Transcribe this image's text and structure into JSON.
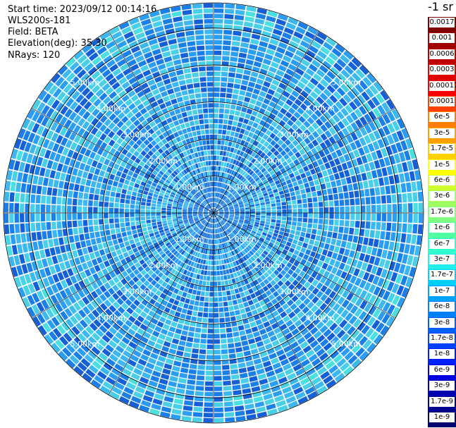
{
  "header": {
    "start_time": "Start time: 2023/09/12 00:14:16",
    "instrument": "WLS200s-181",
    "field": "Field: BETA",
    "elevation": "Elevation(deg): 35.30",
    "nrays": "NRays: 120"
  },
  "colorbar": {
    "unit": "-1 sr",
    "levels": [
      {
        "label": "0.0017",
        "color": "#800000"
      },
      {
        "label": "0.001",
        "color": "#a00000"
      },
      {
        "label": "0.0006",
        "color": "#c00000"
      },
      {
        "label": "0.0003",
        "color": "#e00000"
      },
      {
        "label": "0.00017",
        "color": "#ff0000"
      },
      {
        "label": "0.0001",
        "color": "#ff4000"
      },
      {
        "label": "6e-5",
        "color": "#ff8000"
      },
      {
        "label": "3e-5",
        "color": "#ffa000"
      },
      {
        "label": "1.7e-5",
        "color": "#ffd000"
      },
      {
        "label": "1e-5",
        "color": "#ffff00"
      },
      {
        "label": "6e-6",
        "color": "#d0ff30"
      },
      {
        "label": "3e-6",
        "color": "#a0ff60"
      },
      {
        "label": "1.7e-6",
        "color": "#80ff80"
      },
      {
        "label": "1e-6",
        "color": "#50ffa0"
      },
      {
        "label": "6e-7",
        "color": "#30ffd0"
      },
      {
        "label": "3e-7",
        "color": "#20f0f0"
      },
      {
        "label": "1.7e-7",
        "color": "#00d0ff"
      },
      {
        "label": "1e-7",
        "color": "#00a0ff"
      },
      {
        "label": "6e-8",
        "color": "#0080ff"
      },
      {
        "label": "3e-8",
        "color": "#0060ff"
      },
      {
        "label": "1.7e-8",
        "color": "#0040ff"
      },
      {
        "label": "1e-8",
        "color": "#0020ff"
      },
      {
        "label": "6e-9",
        "color": "#0000e0"
      },
      {
        "label": "3e-9",
        "color": "#0000b0"
      },
      {
        "label": "1.7e-9",
        "color": "#000090"
      },
      {
        "label": "1e-9",
        "color": "#000070"
      }
    ]
  },
  "range_rings": {
    "unit": "km",
    "rings": [
      {
        "range": 1,
        "label": "1.00km"
      },
      {
        "range": 2,
        "label": "2.00km"
      },
      {
        "range": 3,
        "label": "3.00km"
      },
      {
        "range": 4,
        "label": "4.00km"
      },
      {
        "range": 5,
        "label": "5.00km"
      }
    ],
    "max_range": 5
  },
  "palette": {
    "dominant": [
      "#1a7fe8",
      "#2a9df4",
      "#3cb8f0",
      "#1560d8",
      "#48d0e8"
    ],
    "accent_green": "#7fe870",
    "gridline": "#000000",
    "ray_gap": "#ffffff"
  }
}
